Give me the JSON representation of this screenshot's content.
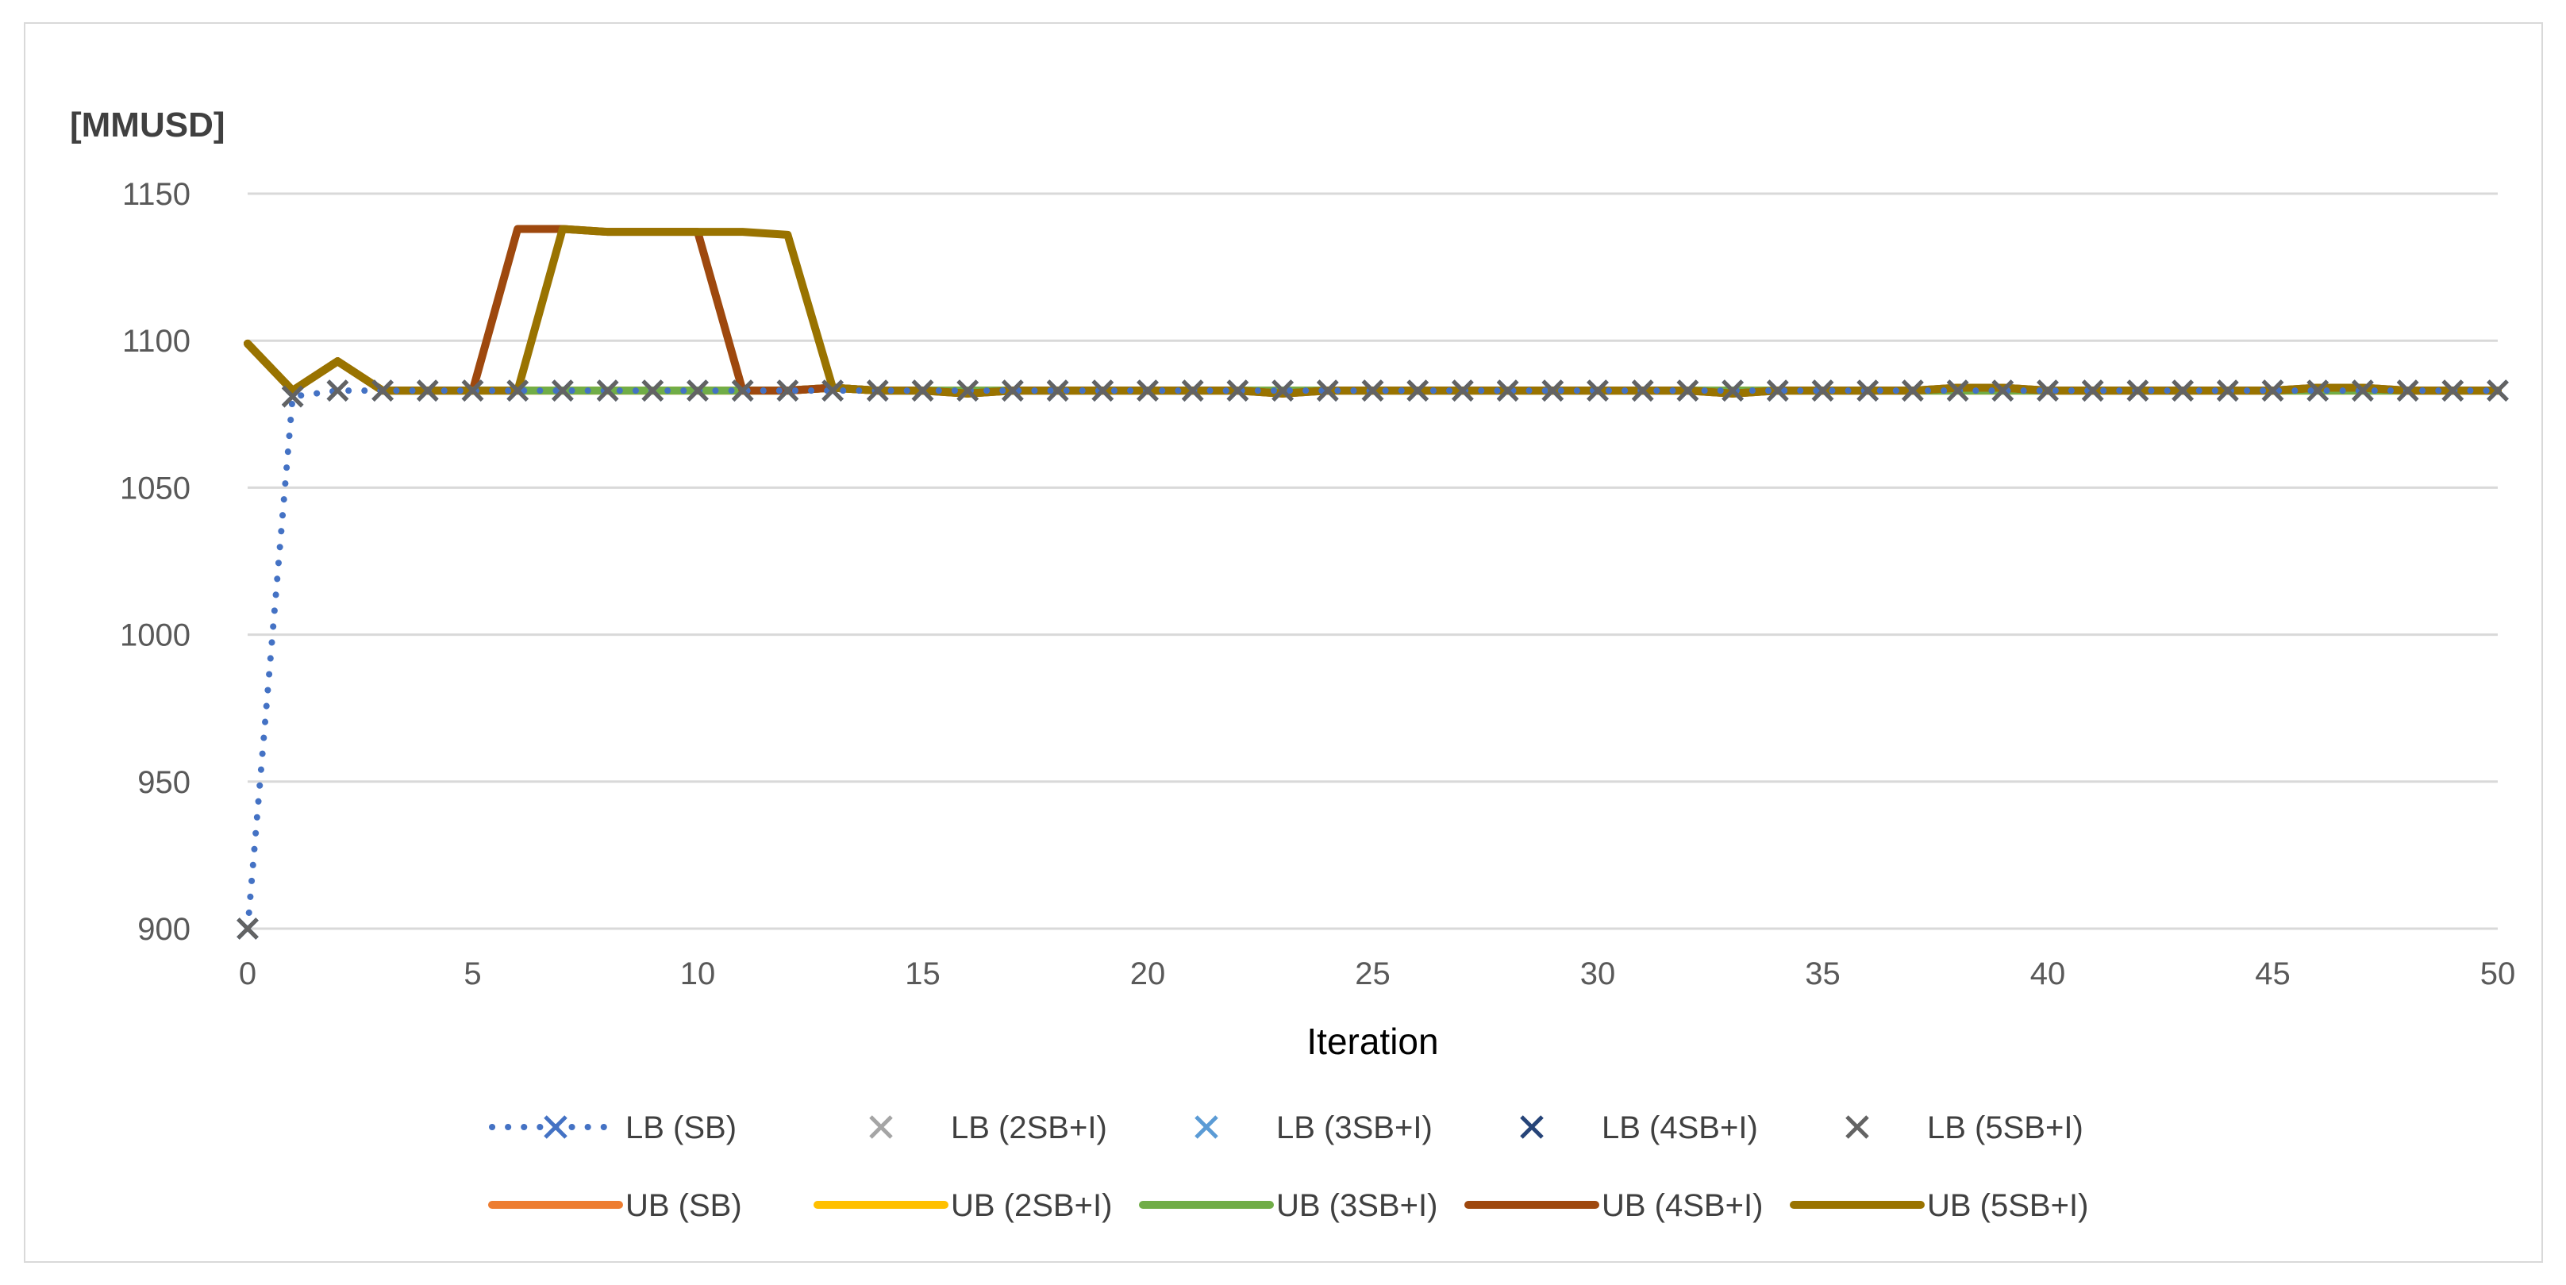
{
  "chart_data": {
    "type": "line",
    "title": "",
    "unit_label": "[MMUSD]",
    "xlabel": "Iteration",
    "ylabel": "",
    "xlim": [
      0,
      50
    ],
    "ylim": [
      900,
      1150
    ],
    "x_ticks": [
      0,
      5,
      10,
      15,
      20,
      25,
      30,
      35,
      40,
      45,
      50
    ],
    "y_ticks": [
      900,
      950,
      1000,
      1050,
      1100,
      1150
    ],
    "grid": "horizontal",
    "legend_position": "bottom",
    "x": [
      0,
      1,
      2,
      3,
      4,
      5,
      6,
      7,
      8,
      9,
      10,
      11,
      12,
      13,
      14,
      15,
      16,
      17,
      18,
      19,
      20,
      21,
      22,
      23,
      24,
      25,
      26,
      27,
      28,
      29,
      30,
      31,
      32,
      33,
      34,
      35,
      36,
      37,
      38,
      39,
      40,
      41,
      42,
      43,
      44,
      45,
      46,
      47,
      48,
      49,
      50
    ],
    "series": [
      {
        "name": "LB (SB)",
        "kind": "lb",
        "color": "#4472c4",
        "line": "dotted",
        "marker": "x",
        "values": [
          900,
          1081,
          1083,
          1083,
          1083,
          1083,
          1083,
          1083,
          1083,
          1083,
          1083,
          1083,
          1083,
          1083,
          1083,
          1083,
          1083,
          1083,
          1083,
          1083,
          1083,
          1083,
          1083,
          1083,
          1083,
          1083,
          1083,
          1083,
          1083,
          1083,
          1083,
          1083,
          1083,
          1083,
          1083,
          1083,
          1083,
          1083,
          1083,
          1083,
          1083,
          1083,
          1083,
          1083,
          1083,
          1083,
          1083,
          1083,
          1083,
          1083,
          1083
        ]
      },
      {
        "name": "LB (2SB+I)",
        "kind": "lb",
        "color": "#a5a5a5",
        "line": "none",
        "marker": "x",
        "values": [
          900,
          1081,
          1083,
          1083,
          1083,
          1083,
          1083,
          1083,
          1083,
          1083,
          1083,
          1083,
          1083,
          1083,
          1083,
          1083,
          1083,
          1083,
          1083,
          1083,
          1083,
          1083,
          1083,
          1083,
          1083,
          1083,
          1083,
          1083,
          1083,
          1083,
          1083,
          1083,
          1083,
          1083,
          1083,
          1083,
          1083,
          1083,
          1083,
          1083,
          1083,
          1083,
          1083,
          1083,
          1083,
          1083,
          1083,
          1083,
          1083,
          1083,
          1083
        ]
      },
      {
        "name": "LB (3SB+I)",
        "kind": "lb",
        "color": "#5b9bd5",
        "line": "none",
        "marker": "x",
        "values": [
          900,
          1081,
          1083,
          1083,
          1083,
          1083,
          1083,
          1083,
          1083,
          1083,
          1083,
          1083,
          1083,
          1083,
          1083,
          1083,
          1083,
          1083,
          1083,
          1083,
          1083,
          1083,
          1083,
          1083,
          1083,
          1083,
          1083,
          1083,
          1083,
          1083,
          1083,
          1083,
          1083,
          1083,
          1083,
          1083,
          1083,
          1083,
          1083,
          1083,
          1083,
          1083,
          1083,
          1083,
          1083,
          1083,
          1083,
          1083,
          1083,
          1083,
          1083
        ]
      },
      {
        "name": "LB (4SB+I)",
        "kind": "lb",
        "color": "#264478",
        "line": "none",
        "marker": "x",
        "values": [
          900,
          1081,
          1083,
          1083,
          1083,
          1083,
          1083,
          1083,
          1083,
          1083,
          1083,
          1083,
          1083,
          1083,
          1083,
          1083,
          1083,
          1083,
          1083,
          1083,
          1083,
          1083,
          1083,
          1083,
          1083,
          1083,
          1083,
          1083,
          1083,
          1083,
          1083,
          1083,
          1083,
          1083,
          1083,
          1083,
          1083,
          1083,
          1083,
          1083,
          1083,
          1083,
          1083,
          1083,
          1083,
          1083,
          1083,
          1083,
          1083,
          1083,
          1083
        ]
      },
      {
        "name": "LB (5SB+I)",
        "kind": "lb",
        "color": "#636363",
        "line": "none",
        "marker": "x",
        "values": [
          900,
          1081,
          1083,
          1083,
          1083,
          1083,
          1083,
          1083,
          1083,
          1083,
          1083,
          1083,
          1083,
          1083,
          1083,
          1083,
          1083,
          1083,
          1083,
          1083,
          1083,
          1083,
          1083,
          1083,
          1083,
          1083,
          1083,
          1083,
          1083,
          1083,
          1083,
          1083,
          1083,
          1083,
          1083,
          1083,
          1083,
          1083,
          1083,
          1083,
          1083,
          1083,
          1083,
          1083,
          1083,
          1083,
          1083,
          1083,
          1083,
          1083,
          1083
        ]
      },
      {
        "name": "UB (SB)",
        "kind": "ub",
        "color": "#ed7d31",
        "line": "solid",
        "marker": "none",
        "values": [
          1099,
          1083,
          1093,
          1083,
          1083,
          1083,
          1083,
          1083,
          1083,
          1083,
          1083,
          1083,
          1083,
          1084,
          1083,
          1083,
          1083,
          1083,
          1083,
          1083,
          1083,
          1083,
          1083,
          1083,
          1083,
          1083,
          1083,
          1083,
          1083,
          1083,
          1083,
          1083,
          1083,
          1083,
          1083,
          1083,
          1083,
          1083,
          1083,
          1083,
          1083,
          1083,
          1083,
          1083,
          1083,
          1083,
          1083,
          1083,
          1083,
          1083,
          1083
        ]
      },
      {
        "name": "UB (2SB+I)",
        "kind": "ub",
        "color": "#ffc000",
        "line": "solid",
        "marker": "none",
        "values": [
          1099,
          1083,
          1093,
          1083,
          1083,
          1083,
          1083,
          1083,
          1083,
          1083,
          1083,
          1083,
          1083,
          1084,
          1083,
          1083,
          1083,
          1083,
          1083,
          1083,
          1083,
          1083,
          1083,
          1083,
          1083,
          1083,
          1083,
          1083,
          1083,
          1083,
          1083,
          1083,
          1083,
          1083,
          1083,
          1083,
          1083,
          1083,
          1083,
          1083,
          1083,
          1083,
          1083,
          1083,
          1083,
          1083,
          1083,
          1083,
          1083,
          1083,
          1083
        ]
      },
      {
        "name": "UB (3SB+I)",
        "kind": "ub",
        "color": "#70ad47",
        "line": "solid",
        "marker": "none",
        "values": [
          1099,
          1083,
          1093,
          1083,
          1083,
          1083,
          1083,
          1083,
          1083,
          1083,
          1083,
          1083,
          1083,
          1084,
          1083,
          1083,
          1083,
          1083,
          1083,
          1083,
          1083,
          1083,
          1083,
          1083,
          1083,
          1083,
          1083,
          1083,
          1083,
          1083,
          1083,
          1083,
          1083,
          1083,
          1083,
          1083,
          1083,
          1083,
          1083,
          1083,
          1083,
          1083,
          1083,
          1083,
          1083,
          1083,
          1083,
          1083,
          1083,
          1083,
          1083
        ]
      },
      {
        "name": "UB (4SB+I)",
        "kind": "ub",
        "color": "#9e480e",
        "line": "solid",
        "marker": "none",
        "values": [
          1099,
          1083,
          1093,
          1083,
          1083,
          1083,
          1138,
          1138,
          1137,
          1137,
          1137,
          1083,
          1083,
          1084,
          1083,
          1083,
          1082,
          1083,
          1083,
          1083,
          1083,
          1083,
          1083,
          1082,
          1083,
          1083,
          1083,
          1083,
          1083,
          1083,
          1083,
          1083,
          1083,
          1082,
          1083,
          1083,
          1083,
          1083,
          1084,
          1084,
          1083,
          1083,
          1083,
          1083,
          1083,
          1083,
          1084,
          1084,
          1083,
          1083,
          1083
        ]
      },
      {
        "name": "UB (5SB+I)",
        "kind": "ub",
        "color": "#997300",
        "line": "solid",
        "marker": "none",
        "values": [
          1099,
          1083,
          1093,
          1083,
          1083,
          1083,
          1083,
          1138,
          1137,
          1137,
          1137,
          1137,
          1136,
          1084,
          1083,
          1083,
          1082,
          1083,
          1083,
          1083,
          1083,
          1083,
          1083,
          1082,
          1083,
          1083,
          1083,
          1083,
          1083,
          1083,
          1083,
          1083,
          1083,
          1082,
          1083,
          1083,
          1083,
          1083,
          1084,
          1084,
          1083,
          1083,
          1083,
          1083,
          1083,
          1083,
          1084,
          1084,
          1083,
          1083,
          1083
        ]
      }
    ]
  }
}
